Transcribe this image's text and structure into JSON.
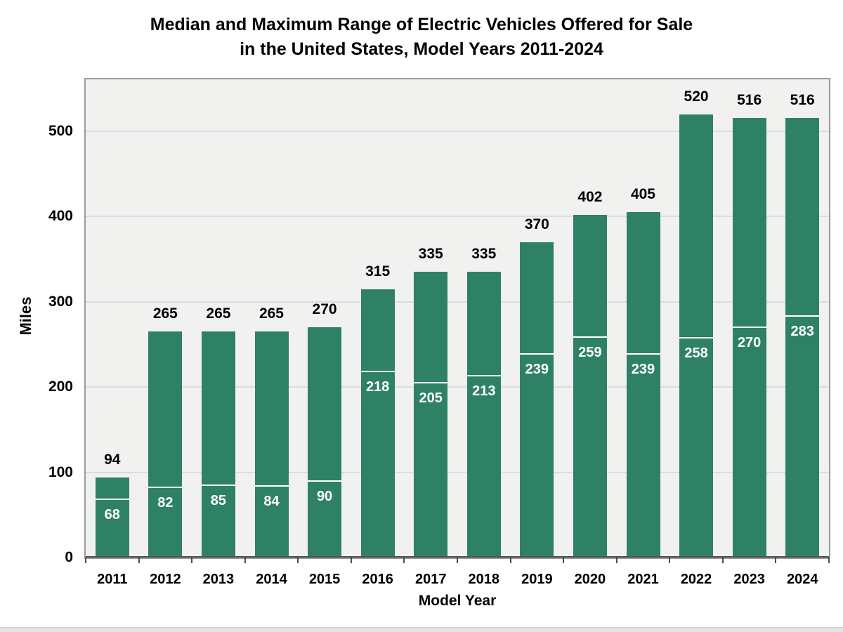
{
  "title": {
    "line1": "Median and Maximum Range of Electric Vehicles Offered for Sale",
    "line2": "in the United States, Model Years 2011-2024"
  },
  "axes": {
    "y_label": "Miles",
    "x_label": "Model Year"
  },
  "chart_data": {
    "type": "bar",
    "title": "Median and Maximum Range of Electric Vehicles Offered for Sale in the United States, Model Years 2011-2024",
    "xlabel": "Model Year",
    "ylabel": "Miles",
    "ylim": [
      0,
      560
    ],
    "yticks": [
      0,
      100,
      200,
      300,
      400,
      500
    ],
    "grid": true,
    "legend": "none",
    "categories": [
      "2011",
      "2012",
      "2013",
      "2014",
      "2015",
      "2016",
      "2017",
      "2018",
      "2019",
      "2020",
      "2021",
      "2022",
      "2023",
      "2024"
    ],
    "series": [
      {
        "name": "Maximum Range",
        "values": [
          94,
          265,
          265,
          265,
          270,
          315,
          335,
          335,
          370,
          402,
          405,
          520,
          516,
          516
        ]
      },
      {
        "name": "Median Range",
        "values": [
          68,
          82,
          85,
          84,
          90,
          218,
          205,
          213,
          239,
          259,
          239,
          258,
          270,
          283
        ]
      }
    ],
    "colors": {
      "bar": "#2e8164",
      "median_line": "#ffffff",
      "max_label_text": "#000000",
      "median_label_text": "#ffffff",
      "plot_background": "#f1f1f0",
      "gridline": "#dcdcdc",
      "plot_border": "#9b9b9b",
      "axis_line": "#4d4d4d"
    }
  }
}
